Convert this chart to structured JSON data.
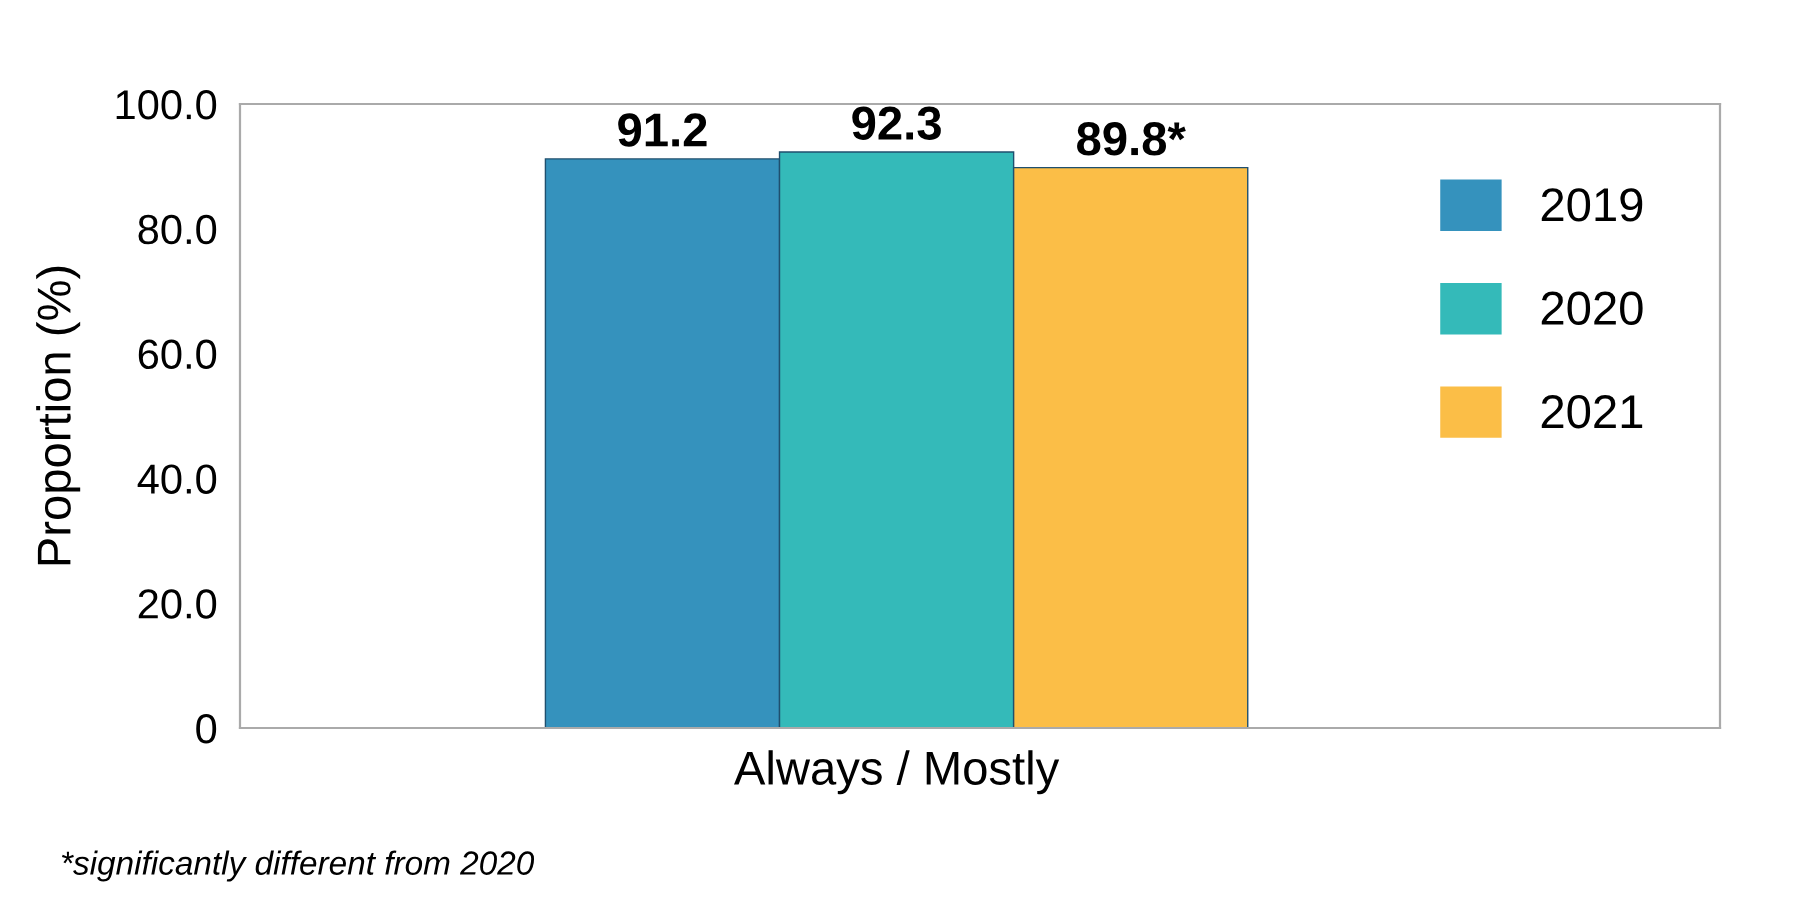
{
  "chart_data": {
    "type": "bar",
    "categories": [
      "Always / Mostly"
    ],
    "ylabel": "Proportion (%)",
    "series": [
      {
        "name": "2019",
        "color": "#3592bd",
        "values": [
          91.2
        ],
        "value_labels": [
          "91.2"
        ]
      },
      {
        "name": "2020",
        "color": "#34bab9",
        "values": [
          92.3
        ],
        "value_labels": [
          "92.3"
        ]
      },
      {
        "name": "2021",
        "color": "#fbbe47",
        "values": [
          89.8
        ],
        "value_labels": [
          "89.8*"
        ]
      }
    ],
    "ylim": [
      0,
      100
    ],
    "yticks": [
      0,
      {
        "value": 20,
        "label": "20.0"
      },
      {
        "value": 40,
        "label": "40.0"
      },
      {
        "value": 60,
        "label": "60.0"
      },
      {
        "value": 80,
        "label": "80.0"
      },
      {
        "value": 100,
        "label": "100.0"
      }
    ],
    "grid": false,
    "legend": "top right",
    "annotations": [
      "*significantly different from 2020"
    ]
  }
}
